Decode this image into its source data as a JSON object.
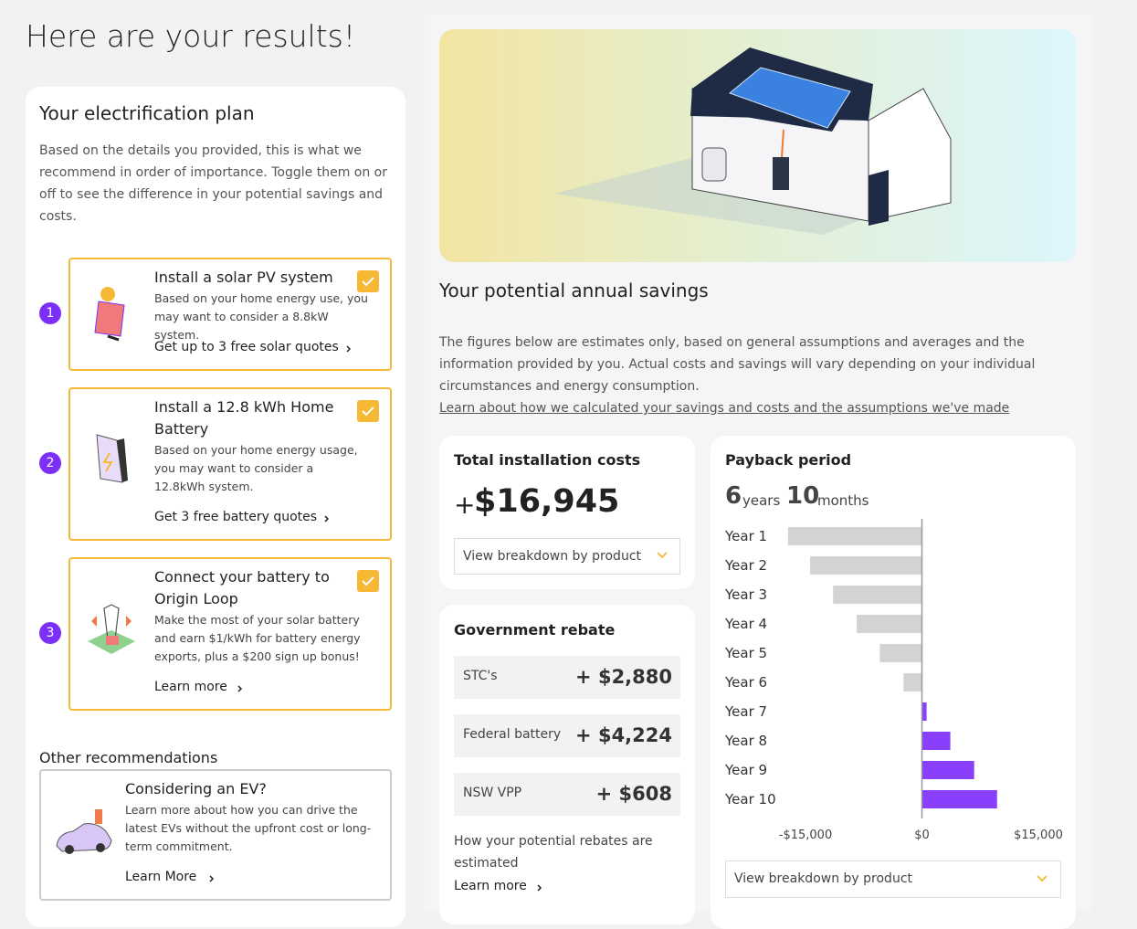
{
  "page": {
    "header": {
      "title": "Here are your results!"
    },
    "plan": {
      "title": "Your electrification plan",
      "description": "Based on the details you provided, this is what we recommend in order of importance. Toggle them on or off to see the difference in your potential savings and costs.",
      "items": [
        {
          "number": 1,
          "title": "Install a solar PV system",
          "text": "Based on your home energy use, you may want to consider a 8.8kW system.",
          "link": "Get up to 3 free solar quotes"
        },
        {
          "number": 2,
          "title": "Install a 12.8 kWh Home Battery",
          "text": "Based on your home energy usage, you may want to consider a 12.8kWh system.",
          "link": "Get 3 free battery quotes"
        },
        {
          "number": 3,
          "title": "Connect your battery to Origin Loop",
          "text": "Make the most of your solar battery and earn $1/kWh for battery energy exports, plus a $200 sign up bonus!",
          "link": "Learn more"
        }
      ],
      "other_title": "Other recommendations",
      "other": {
        "title": "Considering an EV?",
        "text": "Learn more about how you can drive the latest EVs without the upfront cost or long-term commitment.",
        "link": "Learn More"
      }
    },
    "savings": {
      "title": "Your potential annual savings",
      "description": "The figures below are estimates only, based on general assumptions and averages and the information provided by you. Actual costs and savings will vary depending on your individual circumstances and energy consumption.",
      "link": "Learn about how we calculated your savings and costs and the assumptions we've made",
      "total": {
        "title": "Total installation costs",
        "sign": "+",
        "amount": "$16,945",
        "dropdown": "View breakdown by product"
      },
      "rebate": {
        "title": "Government rebate",
        "items": [
          {
            "name": "STC's",
            "amount": "+ $2,880"
          },
          {
            "name": "Federal battery",
            "amount": "+ $4,224"
          },
          {
            "name": "NSW VPP",
            "amount": "+ $608"
          }
        ],
        "note": "How your potential rebates are estimated",
        "link": "Learn more"
      },
      "payback": {
        "years": 6,
        "years_unit": "years",
        "months": 10,
        "months_unit": "months",
        "dropdown": "View breakdown by product"
      }
    }
  },
  "chart_data": {
    "type": "hbar",
    "title": "Payback period",
    "categories": [
      "Year 1",
      "Year 2",
      "Year 3",
      "Year 4",
      "Year 5",
      "Year 6",
      "Year 7",
      "Year 8",
      "Year 9",
      "Year 10"
    ],
    "values": [
      -17250,
      -14400,
      -11450,
      -8400,
      -5430,
      -2370,
      600,
      3660,
      6730,
      9680
    ],
    "colors": [
      "#d3d3d3",
      "#d3d3d3",
      "#d3d3d3",
      "#d3d3d3",
      "#d3d3d3",
      "#d3d3d3",
      "#8a3ffc",
      "#8a3ffc",
      "#8a3ffc",
      "#8a3ffc"
    ],
    "xlim": [
      -17500,
      17500
    ],
    "xticks": [
      {
        "value": -15000,
        "label": "-$15,000"
      },
      {
        "value": 0,
        "label": "$0"
      },
      {
        "value": 15000,
        "label": "$15,000"
      }
    ]
  }
}
